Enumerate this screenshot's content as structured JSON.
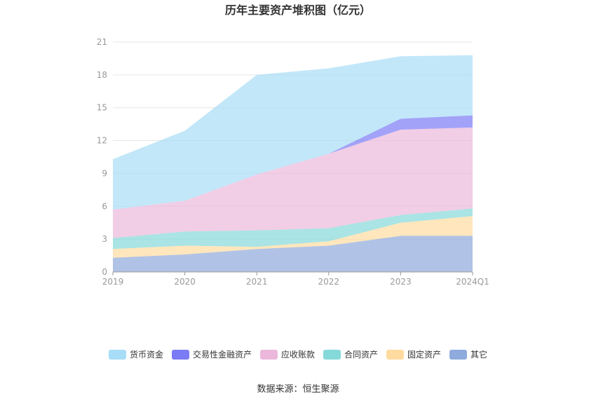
{
  "chart_data": {
    "type": "area",
    "stacked": true,
    "title": "历年主要资产堆积图（亿元）",
    "categories": [
      "2019",
      "2020",
      "2021",
      "2022",
      "2023",
      "2024Q1"
    ],
    "ylim": [
      0,
      21
    ],
    "yticks": [
      0,
      3,
      6,
      9,
      12,
      15,
      18,
      21
    ],
    "grid": true,
    "legend_position": "bottom",
    "series": [
      {
        "name": "其它",
        "color": "#8FAADC",
        "values": [
          1.3,
          1.6,
          2.1,
          2.4,
          3.3,
          3.3
        ]
      },
      {
        "name": "固定资产",
        "color": "#FFDBA0",
        "values": [
          0.8,
          0.8,
          0.2,
          0.4,
          1.2,
          1.8
        ]
      },
      {
        "name": "合同资产",
        "color": "#86D9D9",
        "values": [
          1.0,
          1.3,
          1.5,
          1.2,
          0.7,
          0.7
        ]
      },
      {
        "name": "应收账款",
        "color": "#EBB8DC",
        "values": [
          2.6,
          2.8,
          5.1,
          6.8,
          7.8,
          7.4
        ]
      },
      {
        "name": "交易性金融资产",
        "color": "#7B7BF5",
        "values": [
          0,
          0,
          0,
          0,
          1.0,
          1.1
        ]
      },
      {
        "name": "货币资金",
        "color": "#A8DDF7",
        "values": [
          4.6,
          6.4,
          9.1,
          7.8,
          5.7,
          5.5
        ]
      }
    ],
    "legend_order": [
      "货币资金",
      "交易性金融资产",
      "应收账款",
      "合同资产",
      "固定资产",
      "其它"
    ]
  },
  "source_label": "数据来源：恒生聚源"
}
